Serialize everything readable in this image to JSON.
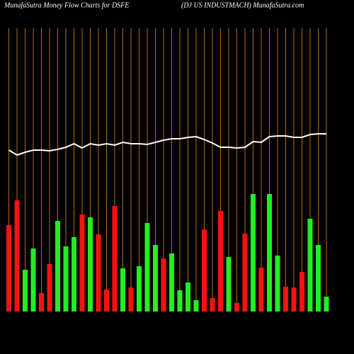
{
  "chart_data": {
    "type": "money-flow",
    "title": "MunafaSutra  Money Flow  Charts for DSFE",
    "subtitle": "(DJ US INDUSTMACH) MunafaSutra.com",
    "ylim": [
      0,
      400
    ],
    "grid_color": "#b86a10",
    "bar_values": [
      122,
      157,
      59,
      89,
      26,
      67,
      128,
      92,
      105,
      137,
      133,
      109,
      31,
      149,
      61,
      34,
      64,
      125,
      94,
      75,
      82,
      30,
      41,
      16,
      116,
      19,
      142,
      77,
      12,
      110,
      166,
      62,
      166,
      79,
      35,
      34,
      56,
      131,
      94,
      21
    ],
    "bar_colors": [
      "#ff1010",
      "#ff1010",
      "#22ee22",
      "#22ee22",
      "#ff1010",
      "#ff1010",
      "#22ee22",
      "#22ee22",
      "#22ee22",
      "#ff1010",
      "#22ee22",
      "#ff1010",
      "#ff1010",
      "#ff1010",
      "#22ee22",
      "#ff1010",
      "#22ee22",
      "#22ee22",
      "#22ee22",
      "#ff1010",
      "#22ee22",
      "#22ee22",
      "#22ee22",
      "#22ee22",
      "#ff1010",
      "#ff1010",
      "#ff1010",
      "#22ee22",
      "#ff1010",
      "#ff1010",
      "#22ee22",
      "#ff1010",
      "#22ee22",
      "#22ee22",
      "#ff1010",
      "#ff1010",
      "#ff1010",
      "#22ee22",
      "#22ee22",
      "#22ee22"
    ],
    "line_values": [
      228,
      221,
      225,
      228,
      228,
      227,
      229,
      232,
      237,
      231,
      237,
      235,
      237,
      235,
      239,
      237,
      237,
      236,
      239,
      242,
      244,
      244,
      246,
      247,
      243,
      238,
      232,
      232,
      231,
      232,
      240,
      239,
      247,
      248,
      248,
      246,
      246,
      250,
      251,
      251
    ],
    "line_color": "#ffffff"
  }
}
